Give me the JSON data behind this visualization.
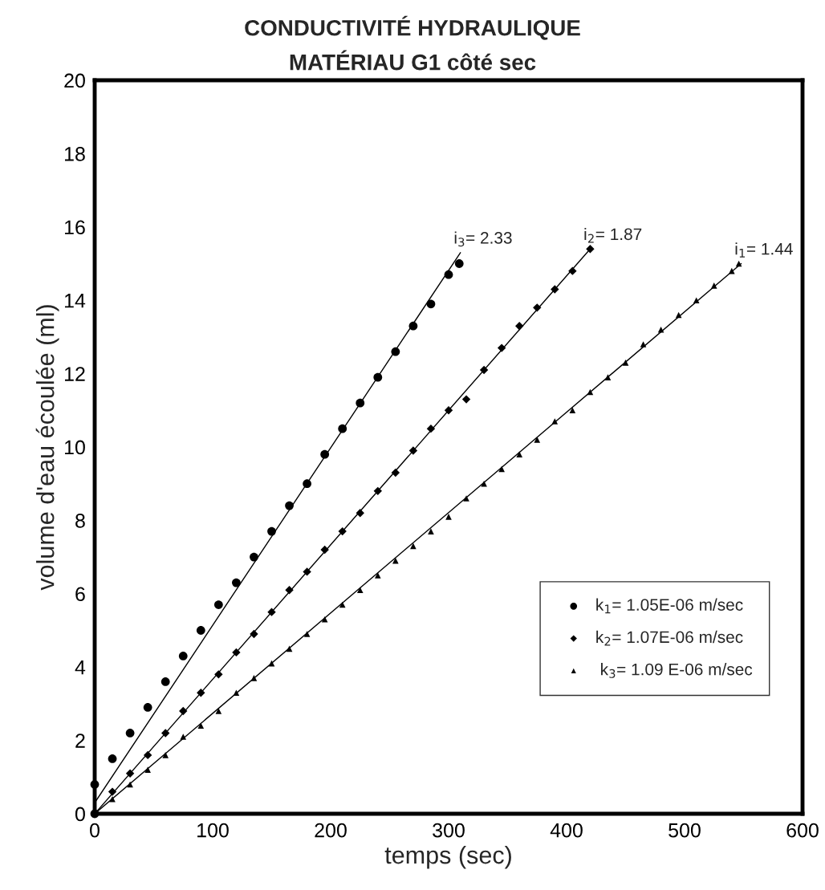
{
  "chart_data": {
    "type": "scatter",
    "title": "CONDUCTIVITÉ HYDRAULIQUE",
    "subtitle": "MATÉRIAU G1 côté sec",
    "xlabel": "temps (sec)",
    "ylabel": "volume d'eau écoulée (ml)",
    "xlim": [
      0,
      600
    ],
    "ylim": [
      0,
      20
    ],
    "xticks": [
      0,
      100,
      200,
      300,
      400,
      500,
      600
    ],
    "yticks": [
      0,
      2,
      4,
      6,
      8,
      10,
      12,
      14,
      16,
      18,
      20
    ],
    "grid": false,
    "legend": "bottom right",
    "series": [
      {
        "name": "k$_{1}$= 1.05E-06 m/sec",
        "color": "#000000",
        "marker": "circle",
        "x": [
          0,
          0,
          15,
          30,
          45,
          60,
          75,
          90,
          105,
          120,
          135,
          150,
          165,
          180,
          195,
          210,
          225,
          240,
          255,
          270,
          285,
          300,
          309
        ],
        "values": [
          0,
          0.8,
          1.5,
          2.2,
          2.9,
          3.6,
          4.3,
          5.0,
          5.7,
          6.3,
          7.0,
          7.7,
          8.4,
          9.0,
          9.8,
          10.5,
          11.2,
          11.9,
          12.6,
          13.3,
          13.9,
          14.7,
          15.0
        ]
      },
      {
        "name": "k$_{2}$= 1.07E-06 m/sec",
        "color": "#000000",
        "marker": "diamond",
        "x": [
          15,
          30,
          45,
          60,
          75,
          90,
          105,
          120,
          135,
          150,
          165,
          180,
          195,
          210,
          225,
          240,
          255,
          270,
          285,
          300,
          315,
          330,
          345,
          360,
          375,
          390,
          405,
          420
        ],
        "values": [
          0.6,
          1.1,
          1.6,
          2.2,
          2.8,
          3.3,
          3.8,
          4.4,
          4.9,
          5.5,
          6.1,
          6.6,
          7.2,
          7.7,
          8.2,
          8.8,
          9.3,
          9.9,
          10.5,
          11.0,
          11.3,
          12.1,
          12.7,
          13.3,
          13.8,
          14.3,
          14.8,
          15.4
        ]
      },
      {
        "name": " k$_{3}$= 1.09 E-06 m/sec",
        "color": "#000000",
        "marker": "triangle",
        "x": [
          15,
          30,
          45,
          60,
          75,
          90,
          105,
          120,
          135,
          150,
          165,
          180,
          195,
          210,
          225,
          240,
          255,
          270,
          285,
          300,
          315,
          330,
          345,
          360,
          375,
          390,
          405,
          420,
          435,
          450,
          465,
          480,
          495,
          510,
          525,
          540,
          546
        ],
        "values": [
          0.4,
          0.8,
          1.2,
          1.6,
          2.1,
          2.4,
          2.8,
          3.3,
          3.7,
          4.1,
          4.5,
          4.9,
          5.3,
          5.7,
          6.1,
          6.5,
          6.9,
          7.3,
          7.7,
          8.1,
          8.6,
          9.0,
          9.4,
          9.8,
          10.2,
          10.7,
          11.0,
          11.5,
          11.9,
          12.3,
          12.8,
          13.2,
          13.6,
          14.0,
          14.4,
          14.8,
          15.0
        ]
      },
      {
        "type": "line",
        "color": "#000000",
        "marker": "none",
        "x": [
          0,
          310
        ],
        "values": [
          0.3,
          15.3
        ]
      },
      {
        "type": "line",
        "color": "#000000",
        "marker": "none",
        "x": [
          0,
          420
        ],
        "values": [
          0,
          15.4
        ]
      },
      {
        "type": "line",
        "color": "#000000",
        "marker": "none",
        "x": [
          0,
          548
        ],
        "values": [
          0,
          15.0
        ]
      }
    ],
    "annotations": [
      {
        "text": "i$_{3}$= 2.33",
        "x": 310,
        "y": 15.3
      },
      {
        "text": "i$_{2}$= 1.87",
        "x": 420,
        "y": 15.4
      },
      {
        "text": "i$_{1}$= 1.44",
        "x": 548,
        "y": 15.0
      }
    ]
  }
}
